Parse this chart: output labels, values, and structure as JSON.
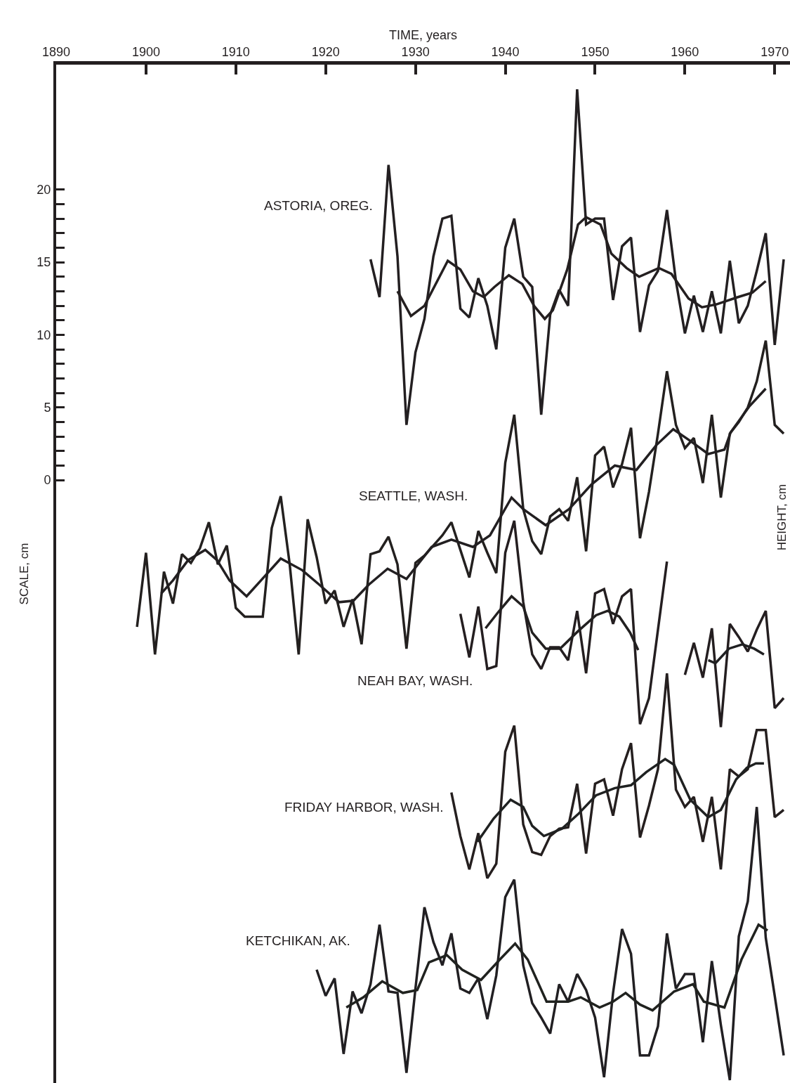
{
  "chart_data": {
    "type": "line",
    "xlabel": "TIME, years",
    "ylabel": "SCALE, cm",
    "annotations": [
      "HEIGHT, cm"
    ],
    "xlim": [
      1890,
      1971.7
    ],
    "xticks": [
      1890,
      1900,
      1910,
      1920,
      1930,
      1940,
      1950,
      1960,
      1970
    ],
    "ylim": [
      -41.5,
      28.6
    ],
    "yticks": [
      0,
      {
        "value": 1,
        "label": null
      },
      {
        "value": 2,
        "label": null
      },
      {
        "value": 3,
        "label": null
      },
      {
        "value": 4,
        "label": null
      },
      5,
      {
        "value": 6,
        "label": null
      },
      {
        "value": 7,
        "label": null
      },
      {
        "value": 8,
        "label": null
      },
      {
        "value": 9,
        "label": null
      },
      10,
      {
        "value": 11,
        "label": null
      },
      {
        "value": 12,
        "label": null
      },
      {
        "value": 13,
        "label": null
      },
      {
        "value": 14,
        "label": null
      },
      15,
      {
        "value": 16,
        "label": null
      },
      {
        "value": 17,
        "label": null
      },
      {
        "value": 18,
        "label": null
      },
      {
        "value": 19,
        "label": null
      },
      20
    ],
    "legend": false,
    "marker": "none",
    "line_style": "solid",
    "series": [
      {
        "name": "ASTORIA, OREG.",
        "color": "#231f21",
        "x": [
          1925,
          1926,
          1927,
          1928,
          1929,
          1930,
          1931,
          1932,
          1933,
          1934,
          1935,
          1936,
          1937,
          1938,
          1939,
          1940,
          1941,
          1942,
          1943,
          1944,
          1945,
          1946,
          1947,
          1948,
          1949,
          1950,
          1951,
          1952,
          1953,
          1954,
          1955,
          1956,
          1957,
          1958,
          1959,
          1960,
          1961,
          1962,
          1963,
          1964,
          1965,
          1966,
          1967,
          1968,
          1969,
          1970,
          1971
        ],
        "values": [
          15.2,
          12.6,
          21.7,
          15.4,
          3.8,
          8.8,
          11.1,
          15.4,
          18.0,
          18.2,
          11.8,
          11.2,
          13.9,
          12.0,
          9.0,
          16.0,
          18.0,
          14.0,
          13.3,
          4.5,
          11.4,
          13.1,
          12.0,
          26.9,
          17.6,
          18.0,
          18.0,
          12.4,
          16.1,
          16.7,
          10.2,
          13.4,
          14.4,
          18.6,
          13.7,
          10.1,
          12.7,
          10.2,
          13.0,
          10.1,
          15.1,
          10.8,
          12.0,
          14.4,
          17.0,
          9.3,
          15.2
        ]
      },
      {
        "color": "#241f20",
        "x": [
          1928.0,
          1929.5,
          1931.0,
          1933.6,
          1935.0,
          1936.4,
          1937.6,
          1938.8,
          1940.4,
          1941.9,
          1943.2,
          1944.4,
          1945.3,
          1946.9,
          1948.1,
          1949.0,
          1950.6,
          1951.8,
          1953.5,
          1954.9,
          1957.1,
          1958.5,
          1960.4,
          1961.9,
          1963.5,
          1965.9,
          1967.5,
          1969.0
        ],
        "values": [
          13.0,
          11.3,
          12.0,
          15.1,
          14.5,
          13.0,
          12.6,
          13.3,
          14.1,
          13.5,
          12.0,
          11.1,
          11.7,
          14.5,
          17.6,
          18.1,
          17.6,
          15.6,
          14.6,
          14.0,
          14.6,
          14.2,
          12.5,
          11.9,
          12.1,
          12.6,
          12.9,
          13.7
        ]
      },
      {
        "name": "SEATTLE, WASH.",
        "color": "#23201f",
        "x": [
          1899,
          1900,
          1901,
          1902,
          1903,
          1904,
          1905,
          1906,
          1907,
          1908,
          1909,
          1910,
          1911,
          1912,
          1913,
          1914,
          1915,
          1916,
          1917,
          1918,
          1919,
          1920,
          1921,
          1922,
          1923,
          1924,
          1925,
          1926,
          1927,
          1928,
          1929,
          1930,
          1931,
          1932,
          1933,
          1934,
          1935,
          1936,
          1937,
          1938,
          1939,
          1940,
          1941,
          1942,
          1943,
          1944,
          1945,
          1946,
          1947,
          1948,
          1949,
          1950,
          1951,
          1952,
          1953,
          1954,
          1955,
          1956,
          1957,
          1958,
          1959,
          1960,
          1961,
          1962,
          1963,
          1964,
          1965,
          1966,
          1967,
          1968,
          1969,
          1970,
          1971
        ],
        "values": [
          -10.1,
          -5.0,
          -12.0,
          -6.3,
          -8.5,
          -5.1,
          -5.7,
          -4.7,
          -2.9,
          -5.8,
          -4.5,
          -8.8,
          -9.4,
          -9.4,
          -9.4,
          -3.3,
          -1.1,
          -5.8,
          -12.0,
          -2.7,
          -5.3,
          -8.5,
          -7.6,
          -10.1,
          -8.2,
          -11.3,
          -5.1,
          -4.9,
          -3.9,
          -5.8,
          -11.6,
          -5.7,
          -5.2,
          -4.5,
          -3.8,
          -2.9,
          -4.8,
          -6.7,
          -3.5,
          -5.0,
          -6.4,
          1.2,
          4.5,
          -2.0,
          -4.2,
          -5.1,
          -2.5,
          -2.0,
          -2.8,
          0.2,
          -4.9,
          1.7,
          2.3,
          -0.5,
          1.1,
          3.6,
          -4.0,
          -0.8,
          3.2,
          7.5,
          3.8,
          2.2,
          2.9,
          -0.2,
          4.5,
          -1.2,
          3.2,
          4.0,
          5.0,
          6.8,
          9.6,
          3.8,
          3.2
        ]
      },
      {
        "color": "#221f21",
        "x": [
          1901.7,
          1903.0,
          1904.7,
          1906.6,
          1907.9,
          1909.3,
          1911.2,
          1912.8,
          1915.0,
          1917.4,
          1919.3,
          1921.5,
          1923.1,
          1924.8,
          1926.9,
          1929.0,
          1931.8,
          1934.0,
          1936.4,
          1938.3,
          1940.7,
          1942.0,
          1944.5,
          1947.1,
          1949.6,
          1952.2,
          1954.6,
          1956.8,
          1958.7,
          1960.6,
          1962.6,
          1964.4,
          1965.1,
          1967.2,
          1969.0
        ],
        "values": [
          -7.8,
          -6.9,
          -5.5,
          -4.8,
          -5.5,
          -6.9,
          -8.0,
          -6.9,
          -5.4,
          -6.2,
          -7.2,
          -8.4,
          -8.3,
          -7.2,
          -6.1,
          -6.8,
          -4.6,
          -4.1,
          -4.6,
          -3.8,
          -1.2,
          -2.0,
          -3.1,
          -2.0,
          -0.3,
          1.0,
          0.7,
          2.4,
          3.5,
          2.7,
          1.8,
          2.1,
          3.3,
          5.1,
          6.3
        ]
      },
      {
        "name": "NEAH BAY, WASH.",
        "color": "#241e20",
        "x": [
          1935,
          1936,
          1937,
          1938,
          1939,
          1940,
          1941,
          1942,
          1943,
          1944,
          1945,
          1946,
          1947,
          1948,
          1949,
          1950,
          1951,
          1952,
          1953,
          1954,
          1955,
          1956,
          1957,
          1958,
          1959,
          1960,
          1961,
          1962,
          1963,
          1964,
          1965,
          1966,
          1967,
          1968,
          1969,
          1970,
          1971
        ],
        "values": [
          -9.2,
          -12.2,
          -8.7,
          -13.0,
          -12.8,
          -5.0,
          -2.8,
          -8.4,
          -12.0,
          -13.0,
          -11.5,
          -11.5,
          -12.4,
          -9.0,
          -13.3,
          -7.8,
          -7.5,
          -9.9,
          -8.0,
          -7.5,
          -16.8,
          -15.0,
          -10.3,
          -5.6,
          null,
          -13.4,
          -11.2,
          -13.6,
          -10.2,
          -17.0,
          -9.9,
          -10.8,
          -11.8,
          -10.3,
          -9.0,
          -15.7,
          -15.0
        ]
      },
      {
        "color": "#222020",
        "x": [
          1937.8,
          1939.2,
          1940.7,
          1942.0,
          1943.0,
          1944.5,
          1946.1,
          1948.1,
          1950.1,
          1951.4,
          1952.7,
          1953.9,
          1954.8
        ],
        "values": [
          -10.2,
          -9.1,
          -8.0,
          -8.7,
          -10.5,
          -11.6,
          -11.6,
          -10.4,
          -9.3,
          -9.0,
          -9.4,
          -10.5,
          -11.7
        ]
      },
      {
        "color": "#202022",
        "x": [
          1962.6,
          1963.4,
          1964.9,
          1966.4,
          1967.7,
          1968.8
        ],
        "values": [
          -12.4,
          -12.6,
          -11.6,
          -11.3,
          -11.6,
          -12.0
        ]
      },
      {
        "name": "FRIDAY HARBOR, WASH.",
        "color": "#251f1f",
        "x": [
          1934,
          1935,
          1936,
          1937,
          1938,
          1939,
          1940,
          1941,
          1942,
          1943,
          1944,
          1945,
          1946,
          1947,
          1948,
          1949,
          1950,
          1951,
          1952,
          1953,
          1954,
          1955,
          1956,
          1957,
          1958,
          1959,
          1960,
          1961,
          1962,
          1963,
          1964,
          1965,
          1966,
          1967,
          1968,
          1969,
          1970,
          1971
        ],
        "values": [
          -21.5,
          -24.5,
          -26.8,
          -24.3,
          -27.4,
          -26.4,
          -18.7,
          -16.9,
          -23.7,
          -25.6,
          -25.8,
          -24.5,
          -24.0,
          -23.9,
          -20.9,
          -25.7,
          -20.9,
          -20.6,
          -23.1,
          -19.9,
          -18.1,
          -24.6,
          -22.4,
          -19.9,
          -13.3,
          -21.3,
          -22.5,
          -21.8,
          -24.9,
          -21.8,
          -26.8,
          -19.9,
          -20.4,
          -19.9,
          -17.2,
          -17.2,
          -23.2,
          -22.7
        ]
      },
      {
        "color": "#1f2121",
        "x": [
          1936.9,
          1938.7,
          1940.6,
          1942.0,
          1943.0,
          1944.3,
          1946.3,
          1948.1,
          1950.1,
          1952.2,
          1954.0,
          1955.7,
          1957.8,
          1958.8,
          1960.6,
          1962.6,
          1964.0,
          1965.7,
          1966.9,
          1967.9,
          1968.8
        ],
        "values": [
          -24.9,
          -23.3,
          -22.0,
          -22.5,
          -23.8,
          -24.5,
          -24.0,
          -23.0,
          -21.7,
          -21.2,
          -21.0,
          -20.1,
          -19.2,
          -19.6,
          -22.0,
          -23.2,
          -22.7,
          -20.6,
          -19.8,
          -19.5,
          -19.5
        ]
      },
      {
        "name": "KETCHIKAN, AK.",
        "color": "#211f22",
        "x": [
          1919,
          1920,
          1921,
          1922,
          1923,
          1924,
          1925,
          1926,
          1927,
          1928,
          1929,
          1930,
          1931,
          1932,
          1933,
          1934,
          1935,
          1936,
          1937,
          1938,
          1939,
          1940,
          1941,
          1942,
          1943,
          1944,
          1945,
          1946,
          1947,
          1948,
          1949,
          1950,
          1951,
          1952,
          1953,
          1954,
          1955,
          1956,
          1957,
          1958,
          1959,
          1960,
          1961,
          1962,
          1963,
          1964,
          1965,
          1966,
          1967,
          1968,
          1969,
          1970,
          1971
        ],
        "values": [
          -33.7,
          -35.5,
          -34.3,
          -39.5,
          -35.2,
          -36.7,
          -34.7,
          -30.6,
          -35.2,
          -35.3,
          -40.8,
          -35.0,
          -29.4,
          -31.8,
          -33.4,
          -31.2,
          -35.0,
          -35.3,
          -34.3,
          -37.1,
          -34.1,
          -28.7,
          -27.5,
          -33.4,
          -36.0,
          -37.0,
          -38.1,
          -34.7,
          -35.9,
          -34.0,
          -35.1,
          -37.0,
          -41.1,
          -35.3,
          -30.9,
          -32.6,
          -39.6,
          -39.6,
          -37.6,
          -31.2,
          -35.0,
          -34.0,
          -34.0,
          -38.7,
          -33.1,
          -37.5,
          -41.3,
          -31.4,
          -29.0,
          -22.5,
          -31.5,
          -35.5,
          -39.6
        ]
      },
      {
        "color": "#20221f",
        "x": [
          1922.3,
          1924.2,
          1926.3,
          1928.6,
          1930.2,
          1931.5,
          1933.5,
          1935.2,
          1937.3,
          1939.4,
          1941.1,
          1942.5,
          1944.6,
          1947.0,
          1948.4,
          1950.5,
          1952.0,
          1953.4,
          1955.0,
          1956.4,
          1958.8,
          1960.9,
          1962.1,
          1964.4,
          1966.3,
          1968.2,
          1969.2
        ],
        "values": [
          -36.3,
          -35.6,
          -34.5,
          -35.3,
          -35.1,
          -33.2,
          -32.7,
          -33.7,
          -34.4,
          -33.0,
          -31.9,
          -33.0,
          -35.9,
          -35.9,
          -35.6,
          -36.3,
          -35.9,
          -35.3,
          -36.1,
          -36.5,
          -35.2,
          -34.7,
          -35.9,
          -36.3,
          -33.0,
          -30.6,
          -31.0
        ]
      }
    ]
  }
}
